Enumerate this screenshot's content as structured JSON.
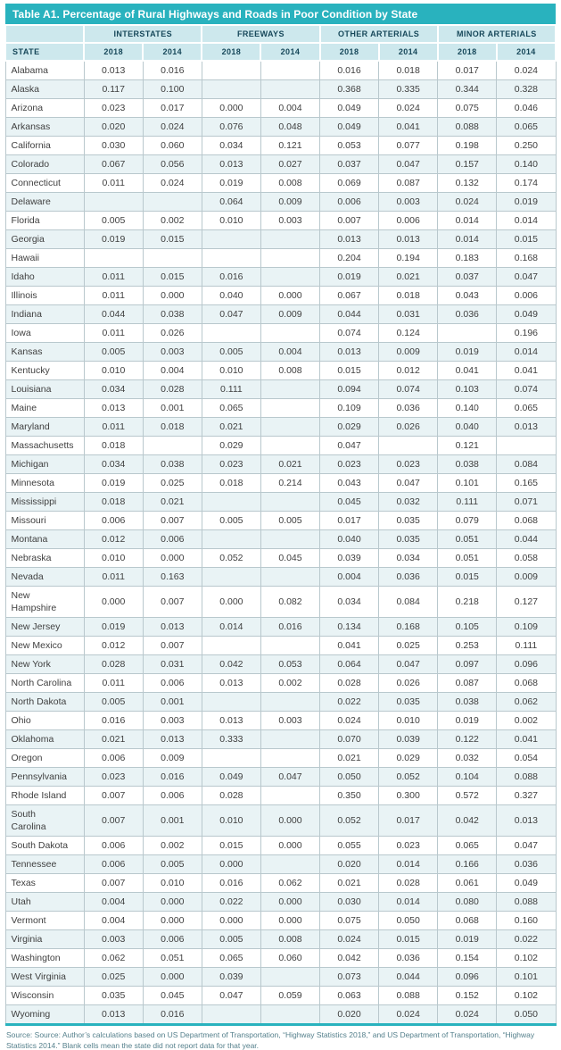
{
  "table": {
    "title": "Table A1. Percentage of Rural Highways and Roads in Poor Condition by State",
    "state_column_header": "STATE",
    "column_groups": [
      {
        "label": "INTERSTATES",
        "years": [
          "2018",
          "2014"
        ]
      },
      {
        "label": "FREEWAYS",
        "years": [
          "2018",
          "2014"
        ]
      },
      {
        "label": "OTHER ARTERIALS",
        "years": [
          "2018",
          "2014"
        ]
      },
      {
        "label": "MINOR ARTERIALS",
        "years": [
          "2018",
          "2014"
        ]
      }
    ],
    "rows": [
      {
        "state": "Alabama",
        "values": [
          "0.013",
          "0.016",
          "",
          "",
          "0.016",
          "0.018",
          "0.017",
          "0.024"
        ]
      },
      {
        "state": "Alaska",
        "values": [
          "0.117",
          "0.100",
          "",
          "",
          "0.368",
          "0.335",
          "0.344",
          "0.328"
        ]
      },
      {
        "state": "Arizona",
        "values": [
          "0.023",
          "0.017",
          "0.000",
          "0.004",
          "0.049",
          "0.024",
          "0.075",
          "0.046"
        ]
      },
      {
        "state": "Arkansas",
        "values": [
          "0.020",
          "0.024",
          "0.076",
          "0.048",
          "0.049",
          "0.041",
          "0.088",
          "0.065"
        ]
      },
      {
        "state": "California",
        "values": [
          "0.030",
          "0.060",
          "0.034",
          "0.121",
          "0.053",
          "0.077",
          "0.198",
          "0.250"
        ]
      },
      {
        "state": "Colorado",
        "values": [
          "0.067",
          "0.056",
          "0.013",
          "0.027",
          "0.037",
          "0.047",
          "0.157",
          "0.140"
        ]
      },
      {
        "state": "Connecticut",
        "values": [
          "0.011",
          "0.024",
          "0.019",
          "0.008",
          "0.069",
          "0.087",
          "0.132",
          "0.174"
        ]
      },
      {
        "state": "Delaware",
        "values": [
          "",
          "",
          "0.064",
          "0.009",
          "0.006",
          "0.003",
          "0.024",
          "0.019"
        ]
      },
      {
        "state": "Florida",
        "values": [
          "0.005",
          "0.002",
          "0.010",
          "0.003",
          "0.007",
          "0.006",
          "0.014",
          "0.014"
        ]
      },
      {
        "state": "Georgia",
        "values": [
          "0.019",
          "0.015",
          "",
          "",
          "0.013",
          "0.013",
          "0.014",
          "0.015"
        ]
      },
      {
        "state": "Hawaii",
        "values": [
          "",
          "",
          "",
          "",
          "0.204",
          "0.194",
          "0.183",
          "0.168"
        ]
      },
      {
        "state": "Idaho",
        "values": [
          "0.011",
          "0.015",
          "0.016",
          "",
          "0.019",
          "0.021",
          "0.037",
          "0.047"
        ]
      },
      {
        "state": "Illinois",
        "values": [
          "0.011",
          "0.000",
          "0.040",
          "0.000",
          "0.067",
          "0.018",
          "0.043",
          "0.006"
        ]
      },
      {
        "state": "Indiana",
        "values": [
          "0.044",
          "0.038",
          "0.047",
          "0.009",
          "0.044",
          "0.031",
          "0.036",
          "0.049"
        ]
      },
      {
        "state": "Iowa",
        "values": [
          "0.011",
          "0.026",
          "",
          "",
          "0.074",
          "0.124",
          "",
          "0.196"
        ]
      },
      {
        "state": "Kansas",
        "values": [
          "0.005",
          "0.003",
          "0.005",
          "0.004",
          "0.013",
          "0.009",
          "0.019",
          "0.014"
        ]
      },
      {
        "state": "Kentucky",
        "values": [
          "0.010",
          "0.004",
          "0.010",
          "0.008",
          "0.015",
          "0.012",
          "0.041",
          "0.041"
        ]
      },
      {
        "state": "Louisiana",
        "values": [
          "0.034",
          "0.028",
          "0.111",
          "",
          "0.094",
          "0.074",
          "0.103",
          "0.074"
        ]
      },
      {
        "state": "Maine",
        "values": [
          "0.013",
          "0.001",
          "0.065",
          "",
          "0.109",
          "0.036",
          "0.140",
          "0.065"
        ]
      },
      {
        "state": "Maryland",
        "values": [
          "0.011",
          "0.018",
          "0.021",
          "",
          "0.029",
          "0.026",
          "0.040",
          "0.013"
        ]
      },
      {
        "state": "Massachusetts",
        "values": [
          "0.018",
          "",
          "0.029",
          "",
          "0.047",
          "",
          "0.121",
          ""
        ]
      },
      {
        "state": "Michigan",
        "values": [
          "0.034",
          "0.038",
          "0.023",
          "0.021",
          "0.023",
          "0.023",
          "0.038",
          "0.084"
        ]
      },
      {
        "state": "Minnesota",
        "values": [
          "0.019",
          "0.025",
          "0.018",
          "0.214",
          "0.043",
          "0.047",
          "0.101",
          "0.165"
        ]
      },
      {
        "state": "Mississippi",
        "values": [
          "0.018",
          "0.021",
          "",
          "",
          "0.045",
          "0.032",
          "0.111",
          "0.071"
        ]
      },
      {
        "state": "Missouri",
        "values": [
          "0.006",
          "0.007",
          "0.005",
          "0.005",
          "0.017",
          "0.035",
          "0.079",
          "0.068"
        ]
      },
      {
        "state": "Montana",
        "values": [
          "0.012",
          "0.006",
          "",
          "",
          "0.040",
          "0.035",
          "0.051",
          "0.044"
        ]
      },
      {
        "state": "Nebraska",
        "values": [
          "0.010",
          "0.000",
          "0.052",
          "0.045",
          "0.039",
          "0.034",
          "0.051",
          "0.058"
        ]
      },
      {
        "state": "Nevada",
        "values": [
          "0.011",
          "0.163",
          "",
          "",
          "0.004",
          "0.036",
          "0.015",
          "0.009"
        ]
      },
      {
        "state": "New\nHampshire",
        "values": [
          "0.000",
          "0.007",
          "0.000",
          "0.082",
          "0.034",
          "0.084",
          "0.218",
          "0.127"
        ]
      },
      {
        "state": "New Jersey",
        "values": [
          "0.019",
          "0.013",
          "0.014",
          "0.016",
          "0.134",
          "0.168",
          "0.105",
          "0.109"
        ]
      },
      {
        "state": "New Mexico",
        "values": [
          "0.012",
          "0.007",
          "",
          "",
          "0.041",
          "0.025",
          "0.253",
          "0.111"
        ]
      },
      {
        "state": "New York",
        "values": [
          "0.028",
          "0.031",
          "0.042",
          "0.053",
          "0.064",
          "0.047",
          "0.097",
          "0.096"
        ]
      },
      {
        "state": "North Carolina",
        "values": [
          "0.011",
          "0.006",
          "0.013",
          "0.002",
          "0.028",
          "0.026",
          "0.087",
          "0.068"
        ]
      },
      {
        "state": "North Dakota",
        "values": [
          "0.005",
          "0.001",
          "",
          "",
          "0.022",
          "0.035",
          "0.038",
          "0.062"
        ]
      },
      {
        "state": "Ohio",
        "values": [
          "0.016",
          "0.003",
          "0.013",
          "0.003",
          "0.024",
          "0.010",
          "0.019",
          "0.002"
        ]
      },
      {
        "state": "Oklahoma",
        "values": [
          "0.021",
          "0.013",
          "0.333",
          "",
          "0.070",
          "0.039",
          "0.122",
          "0.041"
        ]
      },
      {
        "state": "Oregon",
        "values": [
          "0.006",
          "0.009",
          "",
          "",
          "0.021",
          "0.029",
          "0.032",
          "0.054"
        ]
      },
      {
        "state": "Pennsylvania",
        "values": [
          "0.023",
          "0.016",
          "0.049",
          "0.047",
          "0.050",
          "0.052",
          "0.104",
          "0.088"
        ]
      },
      {
        "state": "Rhode Island",
        "values": [
          "0.007",
          "0.006",
          "0.028",
          "",
          "0.350",
          "0.300",
          "0.572",
          "0.327"
        ]
      },
      {
        "state": "South\nCarolina",
        "values": [
          "0.007",
          "0.001",
          "0.010",
          "0.000",
          "0.052",
          "0.017",
          "0.042",
          "0.013"
        ]
      },
      {
        "state": "South Dakota",
        "values": [
          "0.006",
          "0.002",
          "0.015",
          "0.000",
          "0.055",
          "0.023",
          "0.065",
          "0.047"
        ]
      },
      {
        "state": "Tennessee",
        "values": [
          "0.006",
          "0.005",
          "0.000",
          "",
          "0.020",
          "0.014",
          "0.166",
          "0.036"
        ]
      },
      {
        "state": "Texas",
        "values": [
          "0.007",
          "0.010",
          "0.016",
          "0.062",
          "0.021",
          "0.028",
          "0.061",
          "0.049"
        ]
      },
      {
        "state": "Utah",
        "values": [
          "0.004",
          "0.000",
          "0.022",
          "0.000",
          "0.030",
          "0.014",
          "0.080",
          "0.088"
        ]
      },
      {
        "state": "Vermont",
        "values": [
          "0.004",
          "0.000",
          "0.000",
          "0.000",
          "0.075",
          "0.050",
          "0.068",
          "0.160"
        ]
      },
      {
        "state": "Virginia",
        "values": [
          "0.003",
          "0.006",
          "0.005",
          "0.008",
          "0.024",
          "0.015",
          "0.019",
          "0.022"
        ]
      },
      {
        "state": "Washington",
        "values": [
          "0.062",
          "0.051",
          "0.065",
          "0.060",
          "0.042",
          "0.036",
          "0.154",
          "0.102"
        ]
      },
      {
        "state": "West Virginia",
        "values": [
          "0.025",
          "0.000",
          "0.039",
          "",
          "0.073",
          "0.044",
          "0.096",
          "0.101"
        ]
      },
      {
        "state": "Wisconsin",
        "values": [
          "0.035",
          "0.045",
          "0.047",
          "0.059",
          "0.063",
          "0.088",
          "0.152",
          "0.102"
        ]
      },
      {
        "state": "Wyoming",
        "values": [
          "0.013",
          "0.016",
          "",
          "",
          "0.020",
          "0.024",
          "0.024",
          "0.050"
        ]
      }
    ]
  },
  "footer": {
    "source_note": "Source: Source: Author’s calculations based on US Department of Transportation, “Highway Statistics 2018,” and US Department of Transportation, “Highway Statistics 2014.” Blank cells mean the state did not report data for that year."
  },
  "colors": {
    "accent_teal": "#29b2be",
    "header_bg": "#cde8ed",
    "header_text": "#17485a",
    "row_alt_bg": "#e9f3f5",
    "cell_border": "#b9c8cd",
    "body_text": "#3f3f3f",
    "source_text": "#55808c"
  }
}
